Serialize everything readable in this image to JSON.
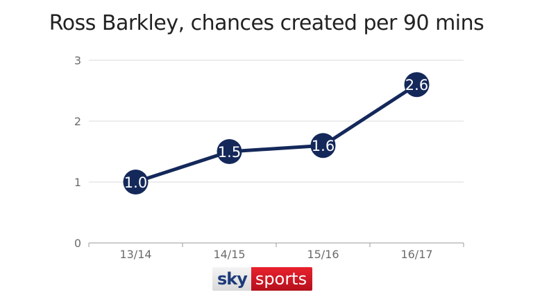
{
  "title": "Ross Barkley, chances created per 90 mins",
  "chart_data": {
    "type": "line",
    "categories": [
      "13/14",
      "14/15",
      "15/16",
      "16/17"
    ],
    "values": [
      1.0,
      1.5,
      1.6,
      2.6
    ],
    "value_labels": [
      "1.0",
      "1.5",
      "1.6",
      "2.6"
    ],
    "yticks": [
      0,
      1,
      2,
      3
    ],
    "ylim": [
      0,
      3
    ],
    "grid": true,
    "line_color": "#14285a",
    "marker_color": "#14285a",
    "grid_color": "#d9d9d9",
    "label_color": "#6b6b6b"
  },
  "logo": {
    "part1": "sky",
    "part2": "sports"
  }
}
